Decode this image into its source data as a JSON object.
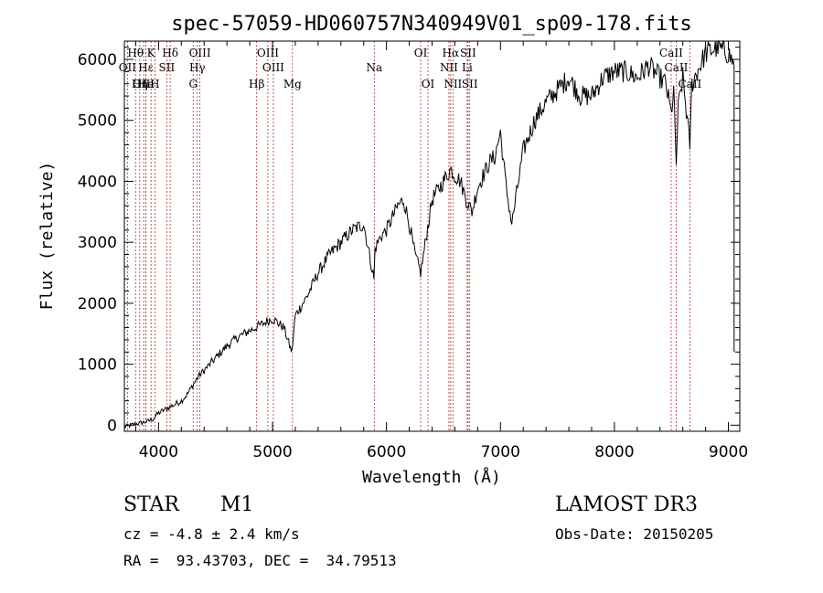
{
  "chart_data": {
    "type": "line",
    "title": "spec-57059-HD060757N340949V01_sp09-178.fits",
    "xlabel": "Wavelength (Å)",
    "ylabel": "Flux (relative)",
    "xlim": [
      3700,
      9100
    ],
    "ylim": [
      -100,
      6300
    ],
    "xticks": [
      4000,
      5000,
      6000,
      7000,
      8000,
      9000
    ],
    "yticks": [
      0,
      1000,
      2000,
      3000,
      4000,
      5000,
      6000
    ],
    "grid": false,
    "series": [
      {
        "name": "spectrum",
        "x": [
          3700,
          3800,
          3900,
          3950,
          4000,
          4050,
          4100,
          4150,
          4200,
          4250,
          4300,
          4350,
          4400,
          4450,
          4500,
          4600,
          4700,
          4800,
          4850,
          4900,
          4950,
          5000,
          5100,
          5150,
          5170,
          5200,
          5300,
          5400,
          5500,
          5600,
          5700,
          5800,
          5890,
          5900,
          5950,
          6000,
          6100,
          6150,
          6200,
          6250,
          6300,
          6400,
          6500,
          6563,
          6600,
          6650,
          6700,
          6750,
          6800,
          6900,
          6950,
          7000,
          7050,
          7100,
          7150,
          7200,
          7300,
          7400,
          7500,
          7600,
          7700,
          7800,
          7900,
          8000,
          8100,
          8200,
          8300,
          8400,
          8450,
          8498,
          8520,
          8542,
          8560,
          8600,
          8662,
          8680,
          8750,
          8800,
          8900,
          9000,
          9050
        ],
        "y": [
          -30,
          20,
          60,
          100,
          200,
          250,
          300,
          350,
          400,
          500,
          650,
          800,
          900,
          1000,
          1100,
          1300,
          1450,
          1550,
          1600,
          1650,
          1700,
          1750,
          1600,
          1300,
          1200,
          1800,
          2100,
          2500,
          2800,
          3000,
          3200,
          3300,
          2400,
          2900,
          3100,
          3200,
          3600,
          3700,
          3300,
          2800,
          2500,
          3700,
          4000,
          4200,
          4100,
          4000,
          3700,
          3500,
          3900,
          4300,
          4400,
          4800,
          3900,
          3300,
          3900,
          4500,
          5000,
          5300,
          5500,
          5700,
          5400,
          5400,
          5700,
          5800,
          5800,
          5700,
          5900,
          5700,
          5600,
          5100,
          5500,
          4300,
          5200,
          5700,
          4600,
          5600,
          5900,
          6100,
          6200,
          6100,
          5900
        ]
      }
    ],
    "lines": [
      {
        "label": "Hθ",
        "x": 3798,
        "row": 1
      },
      {
        "label": "OII",
        "x": 3727,
        "row": 2
      },
      {
        "label": "OIII",
        "x": 3869,
        "row": 3
      },
      {
        "label": "Hε",
        "x": 3889,
        "row": 2
      },
      {
        "label": "He",
        "x": 3889,
        "row": 3
      },
      {
        "label": "Hη",
        "x": 3835,
        "row": 3
      },
      {
        "label": "K",
        "x": 3934,
        "row": 1
      },
      {
        "label": "H",
        "x": 3968,
        "row": 3
      },
      {
        "label": "SII",
        "x": 4072,
        "row": 2
      },
      {
        "label": "Hδ",
        "x": 4102,
        "row": 1
      },
      {
        "label": "OIII",
        "x": 4363,
        "row": 1
      },
      {
        "label": "Hγ",
        "x": 4340,
        "row": 2
      },
      {
        "label": "G",
        "x": 4304,
        "row": 3
      },
      {
        "label": "OIII",
        "x": 4959,
        "row": 1
      },
      {
        "label": "OIII",
        "x": 5007,
        "row": 2
      },
      {
        "label": "Hβ",
        "x": 4861,
        "row": 3
      },
      {
        "label": "Mg",
        "x": 5175,
        "row": 3
      },
      {
        "label": "Na",
        "x": 5893,
        "row": 2
      },
      {
        "label": "OI",
        "x": 6300,
        "row": 1
      },
      {
        "label": "OI",
        "x": 6364,
        "row": 3
      },
      {
        "label": "Hα",
        "x": 6563,
        "row": 1
      },
      {
        "label": "NII",
        "x": 6548,
        "row": 2
      },
      {
        "label": "NII",
        "x": 6583,
        "row": 3
      },
      {
        "label": "SII",
        "x": 6716,
        "row": 1
      },
      {
        "label": "Li",
        "x": 6708,
        "row": 2
      },
      {
        "label": "SII",
        "x": 6731,
        "row": 3
      },
      {
        "label": "CaII",
        "x": 8498,
        "row": 1
      },
      {
        "label": "CaII",
        "x": 8542,
        "row": 2
      },
      {
        "label": "CaII",
        "x": 8662,
        "row": 3
      }
    ]
  },
  "info": {
    "object_type": "STAR",
    "subclass": "M1",
    "survey": "LAMOST DR3",
    "cz": "cz = -4.8 ± 2.4 km/s",
    "obs_date": "Obs-Date: 20150205",
    "coords": "RA =  93.43703, DEC =  34.79513"
  }
}
